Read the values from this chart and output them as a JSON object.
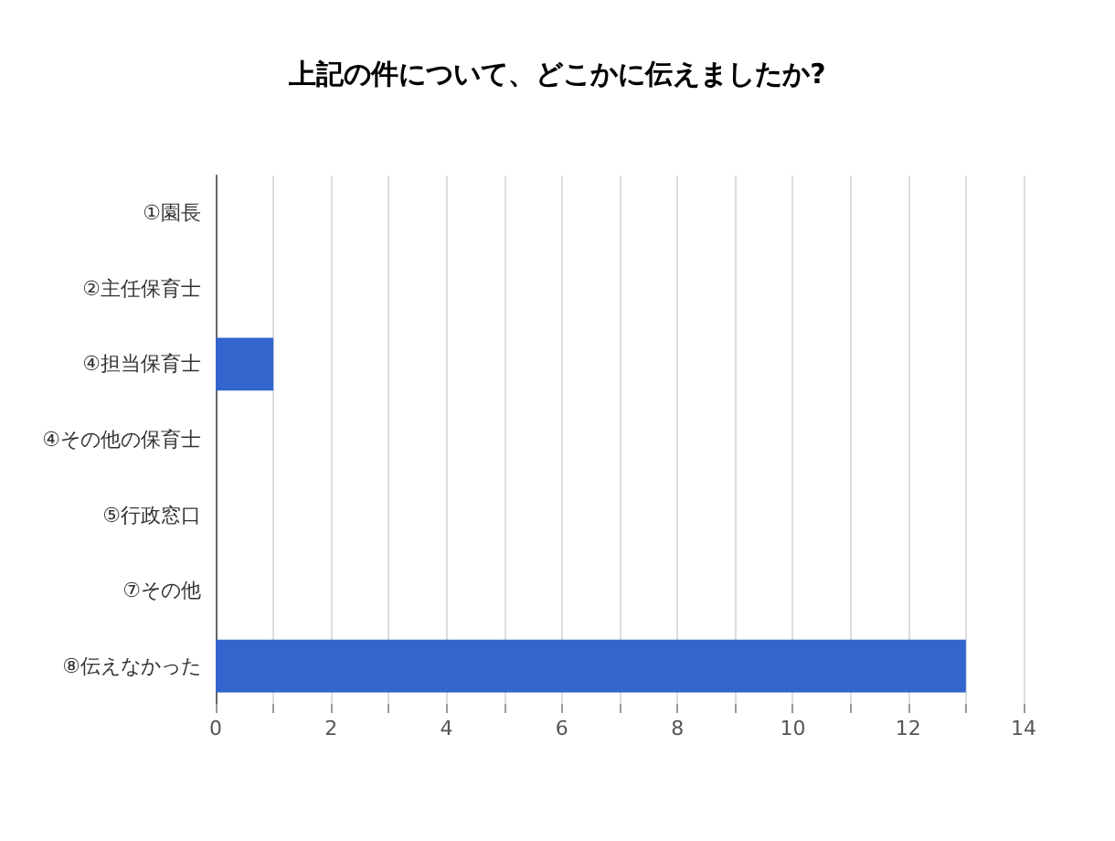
{
  "chart_data": {
    "type": "bar",
    "orientation": "horizontal",
    "title": "上記の件について、どこかに伝えましたか?",
    "categories": [
      "①園長",
      "②主任保育士",
      "④担当保育士",
      "④その他の保育士",
      "⑤行政窓口",
      "⑦その他",
      "⑧伝えなかった"
    ],
    "values": [
      0,
      0,
      1,
      0,
      0,
      0,
      13
    ],
    "color": "#3366cc",
    "xlim": [
      0,
      14
    ],
    "xticks": [
      0,
      {
        "value": 1,
        "label": null
      },
      2,
      {
        "value": 3,
        "label": null
      },
      4,
      {
        "value": 5,
        "label": null
      },
      6,
      {
        "value": 7,
        "label": null
      },
      8,
      {
        "value": 9,
        "label": null
      },
      10,
      {
        "value": 11,
        "label": null
      },
      12,
      {
        "value": 13,
        "label": null
      },
      14
    ],
    "grid": "x"
  }
}
